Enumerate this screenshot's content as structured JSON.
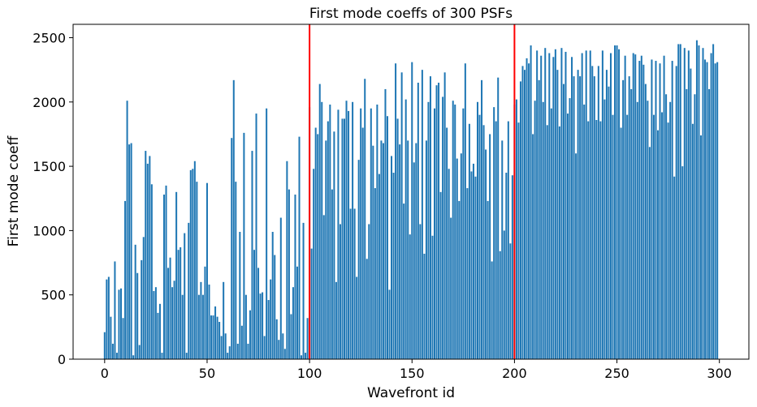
{
  "chart_data": {
    "type": "bar",
    "title": "First mode coeffs of 300 PSFs",
    "xlabel": "Wavefront id",
    "ylabel": "First mode coeff",
    "color": "#1f77b4",
    "bar_width": 0.8,
    "xlim": [
      -15.39,
      314.39
    ],
    "xticks": [
      0,
      50,
      100,
      150,
      200,
      250,
      300
    ],
    "ylim": [
      0,
      2604
    ],
    "yticks": [
      0,
      500,
      1000,
      1500,
      2000,
      2500
    ],
    "vlines": {
      "x": [
        100,
        200
      ],
      "color": "#ff0000"
    },
    "values": [
      210,
      620,
      640,
      330,
      120,
      760,
      50,
      540,
      550,
      320,
      1230,
      2010,
      1670,
      1680,
      30,
      890,
      670,
      110,
      770,
      950,
      1620,
      1520,
      1580,
      1360,
      530,
      560,
      360,
      430,
      50,
      1280,
      1350,
      710,
      790,
      560,
      610,
      1300,
      850,
      870,
      500,
      980,
      50,
      1060,
      1470,
      1480,
      1540,
      1380,
      500,
      600,
      500,
      720,
      1370,
      580,
      340,
      340,
      410,
      330,
      290,
      180,
      600,
      200,
      50,
      100,
      1720,
      2170,
      1380,
      120,
      990,
      260,
      1760,
      500,
      120,
      380,
      1620,
      850,
      1910,
      710,
      510,
      520,
      180,
      1950,
      460,
      620,
      990,
      810,
      310,
      150,
      1100,
      200,
      80,
      1540,
      1320,
      350,
      560,
      1280,
      720,
      1730,
      30,
      1060,
      50,
      320,
      1960,
      860,
      1480,
      1800,
      1750,
      2140,
      2000,
      1120,
      1700,
      1850,
      1980,
      1320,
      1770,
      600,
      1940,
      1050,
      1870,
      1870,
      2010,
      1930,
      1170,
      2000,
      1170,
      640,
      1550,
      1950,
      1800,
      2180,
      780,
      1050,
      1950,
      1660,
      1330,
      1980,
      1440,
      1700,
      1680,
      2100,
      1890,
      540,
      1580,
      1450,
      2300,
      1870,
      1670,
      2230,
      1210,
      2020,
      1700,
      970,
      2310,
      1530,
      1680,
      2150,
      1050,
      2250,
      820,
      1700,
      2000,
      2200,
      960,
      1950,
      2130,
      2150,
      1300,
      2040,
      2230,
      1800,
      1480,
      1100,
      2010,
      1980,
      1560,
      1230,
      1600,
      1950,
      2300,
      1330,
      1830,
      1460,
      1520,
      1420,
      2000,
      1900,
      2170,
      1820,
      1630,
      1230,
      1750,
      760,
      1960,
      1850,
      2190,
      840,
      1700,
      1000,
      1450,
      1850,
      900,
      1430,
      1980,
      2020,
      1840,
      2160,
      2280,
      2250,
      2340,
      2300,
      2440,
      1750,
      2010,
      2400,
      2170,
      2360,
      2000,
      2420,
      1820,
      2380,
      1950,
      2350,
      2410,
      2250,
      1810,
      2420,
      2140,
      2390,
      1910,
      2030,
      2350,
      2200,
      1600,
      2250,
      2200,
      2380,
      1980,
      2400,
      1850,
      2400,
      2280,
      2200,
      1860,
      2280,
      1850,
      2400,
      2020,
      2250,
      2120,
      2380,
      1900,
      2440,
      2440,
      2410,
      1800,
      2170,
      2360,
      1900,
      2200,
      2100,
      2380,
      2370,
      2000,
      2320,
      2360,
      2290,
      2140,
      2010,
      1650,
      2330,
      1900,
      2320,
      1780,
      2300,
      1920,
      2360,
      2060,
      1840,
      2000,
      2320,
      1420,
      2280,
      2450,
      2450,
      1500,
      2420,
      2100,
      2400,
      2260,
      1830,
      2060,
      2480,
      2440,
      1740,
      2420,
      2330,
      2310,
      2100,
      2380,
      2450,
      2300,
      2310
    ]
  }
}
